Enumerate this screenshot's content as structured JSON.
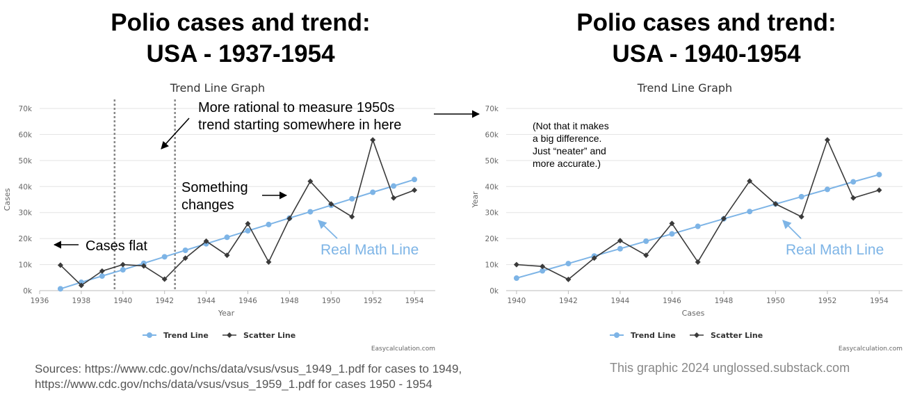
{
  "panels": [
    {
      "title_lines": [
        "Polio cases and trend:",
        "USA - 1937-1954"
      ],
      "annotations": {
        "rational": [
          "More rational to measure 1950s",
          "trend starting somewhere in here"
        ],
        "something": [
          "Something",
          "changes"
        ],
        "flat": "Cases flat",
        "math_line": "Real Math Line"
      }
    },
    {
      "title_lines": [
        "Polio cases and trend:",
        "USA - 1940-1954"
      ],
      "annotations": {
        "note": [
          "(Not that it makes",
          "a big difference.",
          "Just “neater” and",
          "more accurate.)"
        ],
        "math_line": "Real Math Line"
      }
    }
  ],
  "footer": {
    "sources": [
      "Sources: https://www.cdc.gov/nchs/data/vsus/vsus_1949_1.pdf for cases to 1949,",
      "https://www.cdc.gov/nchs/data/vsus/vsus_1959_1.pdf for cases 1950 - 1954"
    ],
    "credit": "This graphic 2024 unglossed.substack.com"
  },
  "colors": {
    "trend": "#7db4e6",
    "scatter": "#3a3a3a",
    "grid": "#e3e3e3",
    "divider": "#888888"
  },
  "chart_data": [
    {
      "type": "line",
      "title": "Trend Line Graph",
      "xlabel": "Year",
      "ylabel": "Cases",
      "xlim": [
        1936,
        1955
      ],
      "ylim": [
        0,
        70000
      ],
      "x_ticks": [
        1936,
        1938,
        1940,
        1942,
        1944,
        1946,
        1948,
        1950,
        1952,
        1954
      ],
      "y_ticks": [
        "0k",
        "10k",
        "20k",
        "30k",
        "40k",
        "50k",
        "60k",
        "70k"
      ],
      "vertical_markers": [
        1939.6,
        1942.5
      ],
      "legend_placement": "bottom",
      "credit": "Easycalculation.com",
      "series": [
        {
          "name": "Trend Line",
          "marker": "circle",
          "x": [
            1937,
            1938,
            1939,
            1940,
            1941,
            1942,
            1943,
            1944,
            1945,
            1946,
            1947,
            1948,
            1949,
            1950,
            1951,
            1952,
            1953,
            1954
          ],
          "y": [
            700,
            3200,
            5600,
            8000,
            10500,
            13000,
            15500,
            18000,
            20500,
            23000,
            25400,
            27900,
            30300,
            32800,
            35300,
            37800,
            40200,
            42700
          ]
        },
        {
          "name": "Scatter Line",
          "marker": "diamond",
          "x": [
            1937,
            1938,
            1939,
            1940,
            1941,
            1942,
            1943,
            1944,
            1945,
            1946,
            1947,
            1948,
            1949,
            1950,
            1951,
            1952,
            1953,
            1954
          ],
          "y": [
            9800,
            2000,
            7500,
            10000,
            9500,
            4400,
            12500,
            19000,
            13600,
            25700,
            11000,
            27700,
            42000,
            33300,
            28400,
            57900,
            35600,
            38600
          ]
        }
      ]
    },
    {
      "type": "line",
      "title": "Trend Line Graph",
      "xlabel": "Cases",
      "ylabel": "Year",
      "xlim": [
        1939.6,
        1954.9
      ],
      "ylim": [
        0,
        70000
      ],
      "x_ticks": [
        1940,
        1942,
        1944,
        1946,
        1948,
        1950,
        1952,
        1954
      ],
      "y_ticks": [
        "0k",
        "10k",
        "20k",
        "30k",
        "40k",
        "50k",
        "60k",
        "70k"
      ],
      "legend_placement": "bottom",
      "credit": "Easycalculation.com",
      "series": [
        {
          "name": "Trend Line",
          "marker": "circle",
          "x": [
            1940,
            1941,
            1942,
            1943,
            1944,
            1945,
            1946,
            1947,
            1948,
            1949,
            1950,
            1951,
            1952,
            1953,
            1954
          ],
          "y": [
            4800,
            7600,
            10400,
            13300,
            16100,
            19000,
            21800,
            24700,
            27600,
            30400,
            33300,
            36100,
            38900,
            41800,
            44600
          ]
        },
        {
          "name": "Scatter Line",
          "marker": "diamond",
          "x": [
            1940,
            1941,
            1942,
            1943,
            1944,
            1945,
            1946,
            1947,
            1948,
            1949,
            1950,
            1951,
            1952,
            1953,
            1954
          ],
          "y": [
            10000,
            9300,
            4300,
            12500,
            19200,
            13600,
            25800,
            11000,
            27700,
            42100,
            33300,
            28400,
            57900,
            35600,
            38600
          ]
        }
      ]
    }
  ]
}
